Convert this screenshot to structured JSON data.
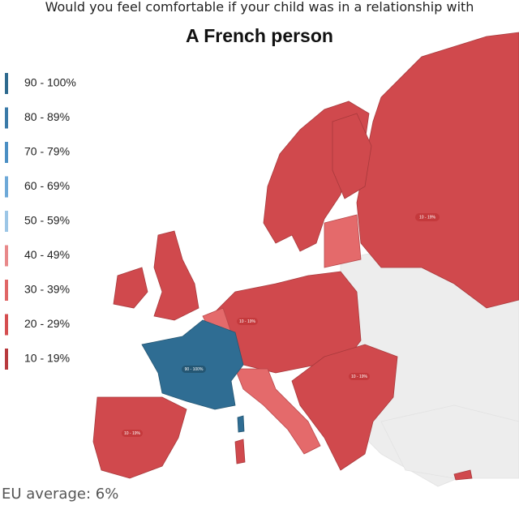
{
  "header": {
    "caption": "Would you feel comfortable if your child was in a relationship with",
    "title": "A French person"
  },
  "legend": [
    {
      "label": "90 - 100%",
      "color": "#2e6a8e"
    },
    {
      "label": "80 - 89%",
      "color": "#3a7aa8"
    },
    {
      "label": "70 - 79%",
      "color": "#4b8fc4"
    },
    {
      "label": "60 - 69%",
      "color": "#6ea9d8"
    },
    {
      "label": "50 - 59%",
      "color": "#9cc6e6"
    },
    {
      "label": "40 - 49%",
      "color": "#e8898a"
    },
    {
      "label": "30 - 39%",
      "color": "#e06666"
    },
    {
      "label": "20 - 29%",
      "color": "#d54e50"
    },
    {
      "label": "10 - 19%",
      "color": "#b83a3e"
    }
  ],
  "map_labels": [
    "10 - 19%",
    "10 - 19%",
    "90 - 100%",
    "10 - 19%",
    "10 - 19%"
  ],
  "footer": "EU average: 6%"
}
